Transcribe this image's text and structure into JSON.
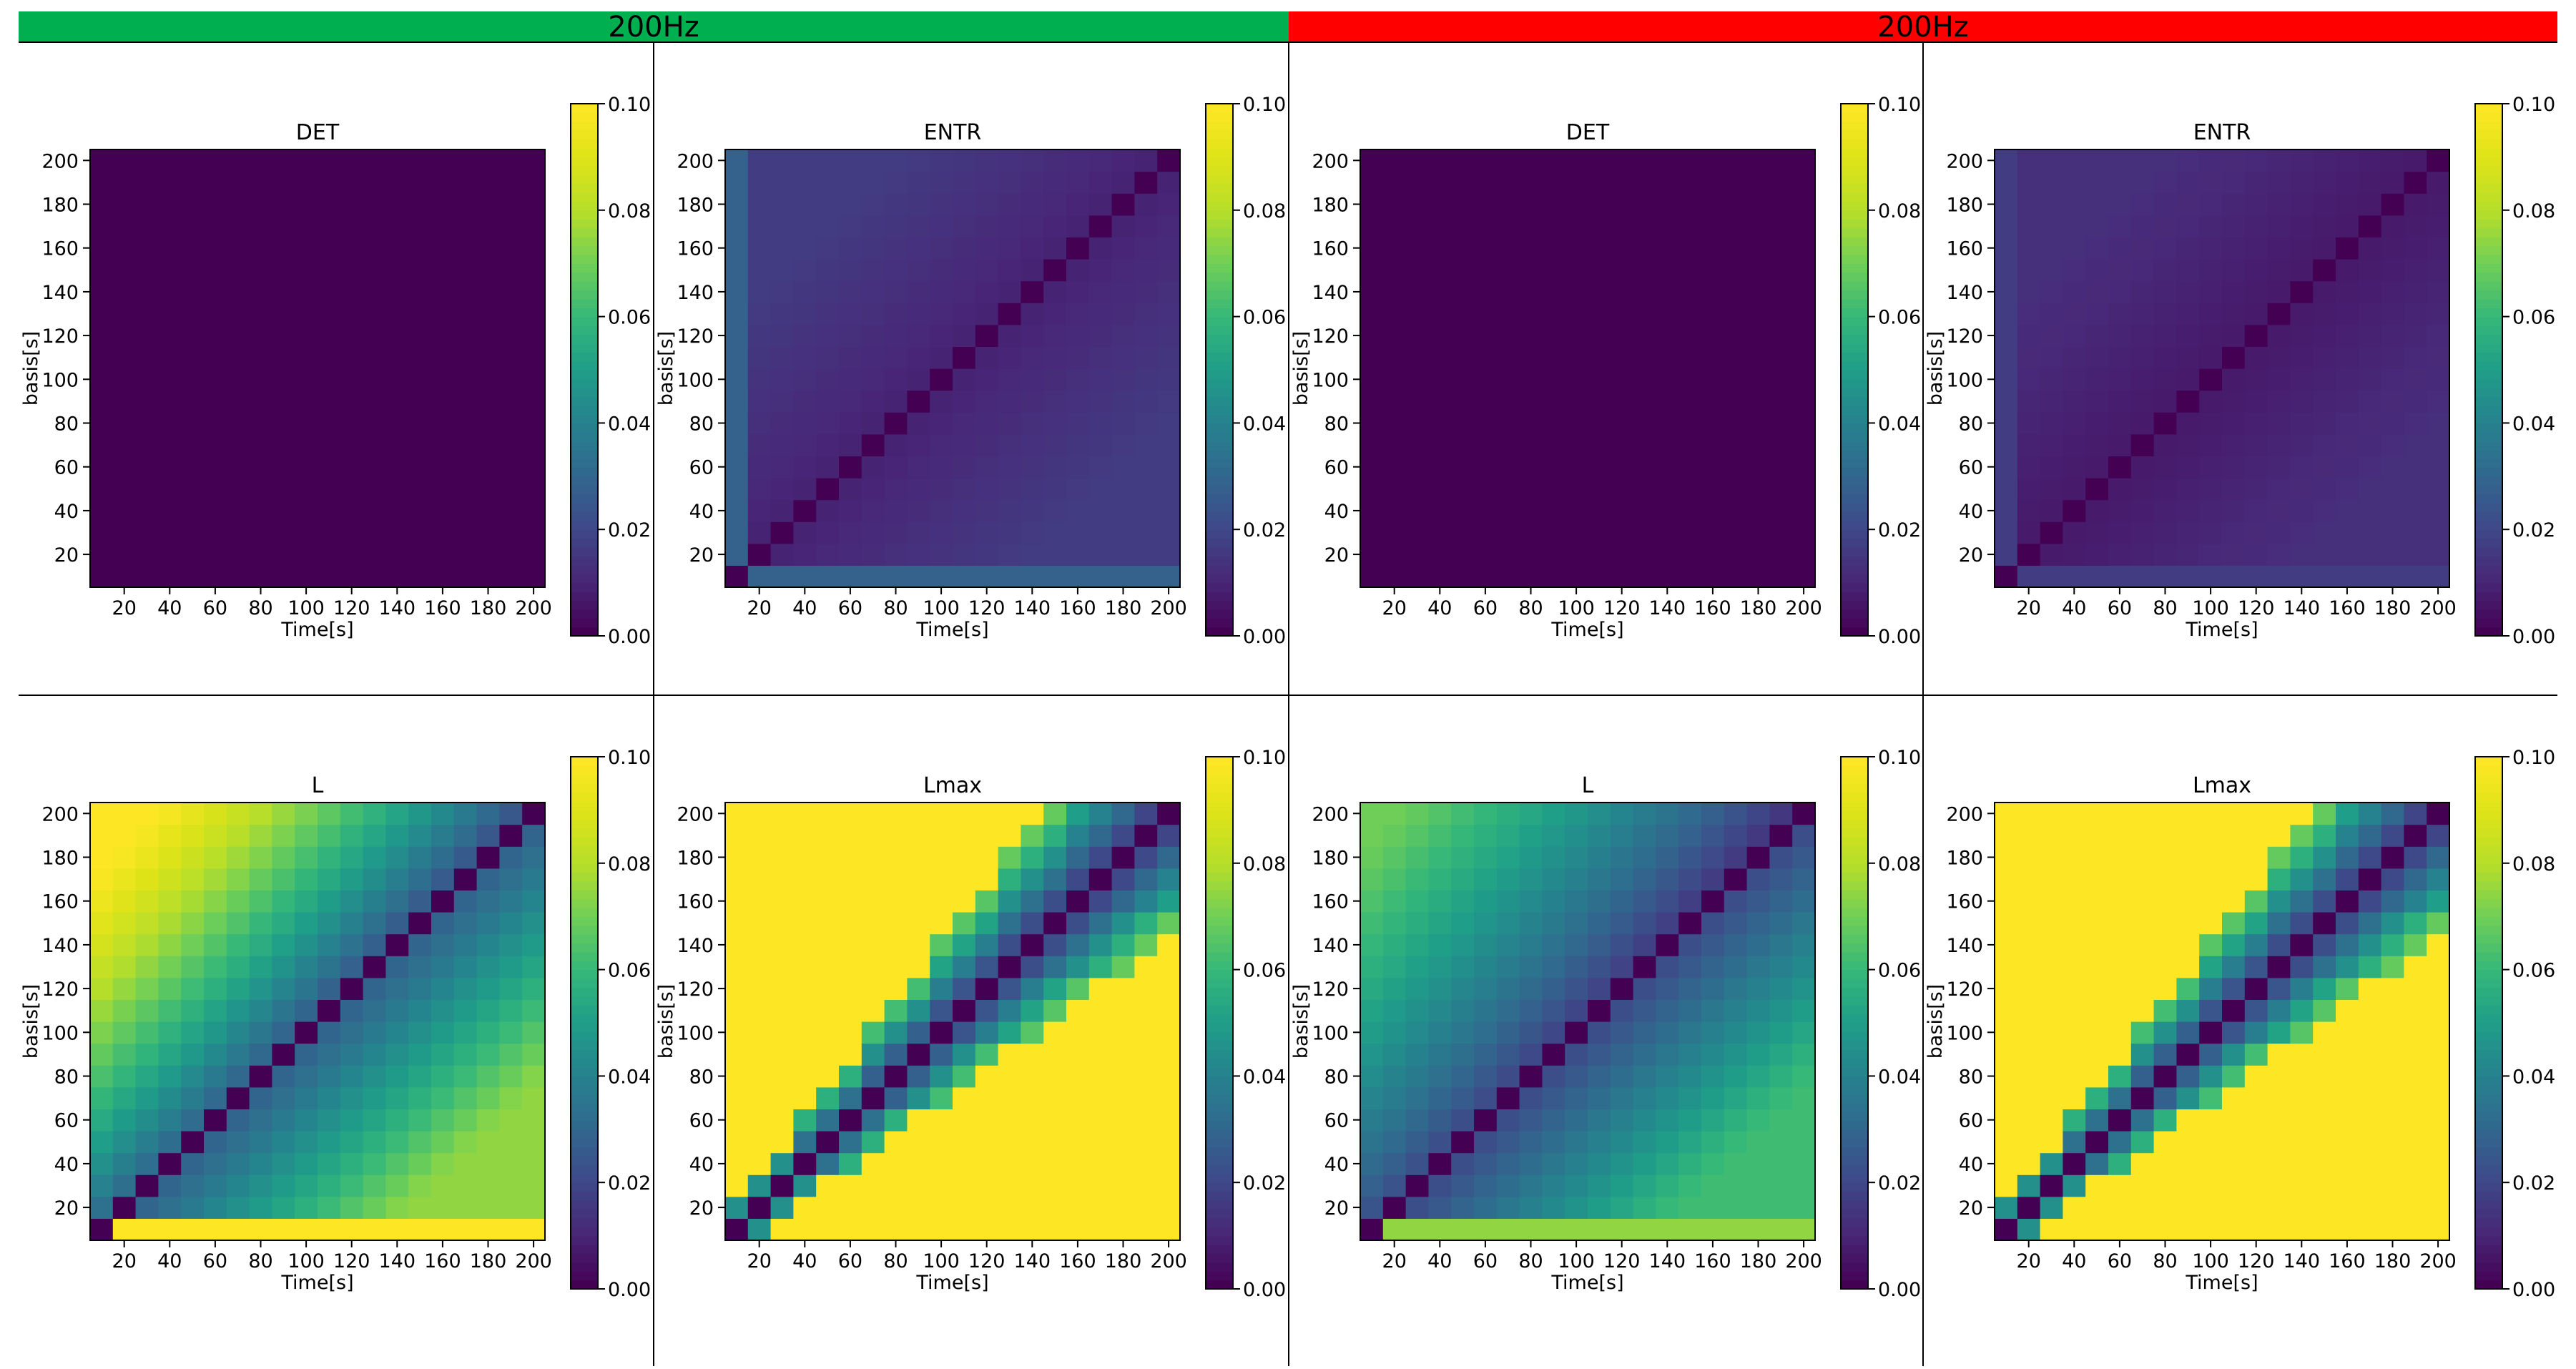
{
  "banners": [
    {
      "label": "200Hz",
      "color": "#00b050"
    },
    {
      "label": "200Hz",
      "color": "#ff0000"
    }
  ],
  "colorbar": {
    "ticks": [
      "0.00",
      "0.02",
      "0.04",
      "0.06",
      "0.08",
      "0.10"
    ],
    "colormap": "viridis",
    "range": [
      0.0,
      0.1
    ]
  },
  "chart_data": [
    {
      "type": "heatmap",
      "group": "green",
      "panel": "top-left",
      "title": "DET",
      "xlabel": "Time[s]",
      "ylabel": "basis[s]",
      "xticks": [
        "20",
        "40",
        "60",
        "80",
        "100",
        "120",
        "140",
        "160",
        "180",
        "200"
      ],
      "yticks": [
        "20",
        "40",
        "60",
        "80",
        "100",
        "120",
        "140",
        "160",
        "180",
        "200"
      ],
      "n": 20,
      "vmin": 0.0,
      "vmax": 0.1,
      "pattern": "uniform",
      "values": {
        "base": 0.0
      }
    },
    {
      "type": "heatmap",
      "group": "green",
      "panel": "top-mid-left",
      "title": "ENTR",
      "xlabel": "Time[s]",
      "ylabel": "basis[s]",
      "xticks": [
        "20",
        "40",
        "60",
        "80",
        "100",
        "120",
        "140",
        "160",
        "180",
        "200"
      ],
      "yticks": [
        "20",
        "40",
        "60",
        "80",
        "100",
        "120",
        "140",
        "160",
        "180",
        "200"
      ],
      "n": 20,
      "vmin": 0.0,
      "vmax": 0.1,
      "pattern": "entr",
      "values": {
        "diag": 0.0,
        "near": 0.008,
        "far": 0.016,
        "edge_left": 0.028,
        "edge_bottom": 0.028
      }
    },
    {
      "type": "heatmap",
      "group": "red",
      "panel": "top-mid-right",
      "title": "DET",
      "xlabel": "Time[s]",
      "ylabel": "basis[s]",
      "xticks": [
        "20",
        "40",
        "60",
        "80",
        "100",
        "120",
        "140",
        "160",
        "180",
        "200"
      ],
      "yticks": [
        "20",
        "40",
        "60",
        "80",
        "100",
        "120",
        "140",
        "160",
        "180",
        "200"
      ],
      "n": 20,
      "vmin": 0.0,
      "vmax": 0.1,
      "pattern": "uniform",
      "values": {
        "base": 0.0
      }
    },
    {
      "type": "heatmap",
      "group": "red",
      "panel": "top-right",
      "title": "ENTR",
      "xlabel": "Time[s]",
      "ylabel": "basis[s]",
      "xticks": [
        "20",
        "40",
        "60",
        "80",
        "100",
        "120",
        "140",
        "160",
        "180",
        "200"
      ],
      "yticks": [
        "20",
        "40",
        "60",
        "80",
        "100",
        "120",
        "140",
        "160",
        "180",
        "200"
      ],
      "n": 20,
      "vmin": 0.0,
      "vmax": 0.1,
      "pattern": "entr",
      "values": {
        "diag": 0.0,
        "near": 0.006,
        "far": 0.012,
        "edge_left": 0.016,
        "edge_bottom": 0.016
      }
    },
    {
      "type": "heatmap",
      "group": "green",
      "panel": "bottom-left",
      "title": "L",
      "xlabel": "Time[s]",
      "ylabel": "basis[s]",
      "xticks": [
        "20",
        "40",
        "60",
        "80",
        "100",
        "120",
        "140",
        "160",
        "180",
        "200"
      ],
      "yticks": [
        "20",
        "40",
        "60",
        "80",
        "100",
        "120",
        "140",
        "160",
        "180",
        "200"
      ],
      "n": 20,
      "vmin": 0.0,
      "vmax": 0.1,
      "pattern": "L",
      "values": {
        "diag": 0.0,
        "near": 0.025,
        "upper_far": 0.05,
        "upper_edge": 0.1,
        "lower_far": 0.075,
        "edge_bottom": 0.1
      }
    },
    {
      "type": "heatmap",
      "group": "green",
      "panel": "bottom-mid-left",
      "title": "Lmax",
      "xlabel": "Time[s]",
      "ylabel": "basis[s]",
      "xticks": [
        "20",
        "40",
        "60",
        "80",
        "100",
        "120",
        "140",
        "160",
        "180",
        "200"
      ],
      "yticks": [
        "20",
        "40",
        "60",
        "80",
        "100",
        "120",
        "140",
        "160",
        "180",
        "200"
      ],
      "n": 20,
      "vmin": 0.0,
      "vmax": 0.1,
      "pattern": "Lmax",
      "values": {
        "diag": 0.0,
        "off_band": 0.1
      }
    },
    {
      "type": "heatmap",
      "group": "red",
      "panel": "bottom-mid-right",
      "title": "L",
      "xlabel": "Time[s]",
      "ylabel": "basis[s]",
      "xticks": [
        "20",
        "40",
        "60",
        "80",
        "100",
        "120",
        "140",
        "160",
        "180",
        "200"
      ],
      "yticks": [
        "20",
        "40",
        "60",
        "80",
        "100",
        "120",
        "140",
        "160",
        "180",
        "200"
      ],
      "n": 20,
      "vmin": 0.0,
      "vmax": 0.1,
      "pattern": "L",
      "values": {
        "diag": 0.0,
        "near": 0.018,
        "upper_far": 0.035,
        "upper_edge": 0.07,
        "lower_far": 0.062,
        "edge_bottom": 0.075
      }
    },
    {
      "type": "heatmap",
      "group": "red",
      "panel": "bottom-right",
      "title": "Lmax",
      "xlabel": "Time[s]",
      "ylabel": "basis[s]",
      "xticks": [
        "20",
        "40",
        "60",
        "80",
        "100",
        "120",
        "140",
        "160",
        "180",
        "200"
      ],
      "yticks": [
        "20",
        "40",
        "60",
        "80",
        "100",
        "120",
        "140",
        "160",
        "180",
        "200"
      ],
      "n": 20,
      "vmin": 0.0,
      "vmax": 0.1,
      "pattern": "Lmax",
      "values": {
        "diag": 0.0,
        "off_band": 0.1
      }
    }
  ]
}
